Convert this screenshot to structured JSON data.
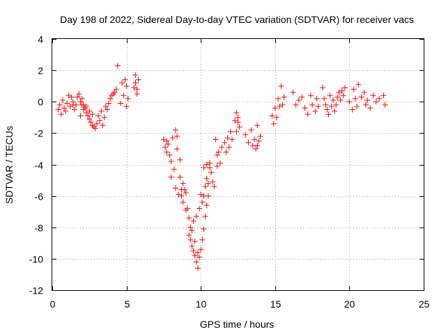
{
  "chart_data": {
    "type": "scatter",
    "title": "Day 198 of 2022, Sidereal Day-to-day VTEC variation (SDTVAR) for receiver vacs",
    "xlabel": "GPS time / hours",
    "ylabel": "SDTVAR / TECUs",
    "xlim": [
      0,
      25
    ],
    "ylim": [
      -12,
      4
    ],
    "xticks": [
      "0",
      "5",
      "10",
      "15",
      "20",
      "25"
    ],
    "yticks": [
      "4",
      "2",
      "0",
      "-2",
      "-4",
      "-6",
      "-8",
      "-10",
      "-12"
    ],
    "grid": true,
    "marker": "+",
    "color": "#ff0000",
    "series": [
      {
        "name": "SDTVAR",
        "points": [
          [
            0.4,
            -0.5
          ],
          [
            0.5,
            -0.2
          ],
          [
            0.6,
            -0.8
          ],
          [
            0.7,
            0.1
          ],
          [
            0.8,
            -0.4
          ],
          [
            0.9,
            -0.6
          ],
          [
            1.0,
            -0.1
          ],
          [
            1.1,
            0.4
          ],
          [
            1.2,
            -0.3
          ],
          [
            1.3,
            0.3
          ],
          [
            1.4,
            -0.2
          ],
          [
            1.5,
            -0.5
          ],
          [
            1.4,
            0.0
          ],
          [
            1.6,
            -0.2
          ],
          [
            1.7,
            0.3
          ],
          [
            1.8,
            0.5
          ],
          [
            1.9,
            0.0
          ],
          [
            2.0,
            -0.2
          ],
          [
            2.1,
            -0.5
          ],
          [
            2.2,
            -0.4
          ],
          [
            2.3,
            -0.7
          ],
          [
            2.4,
            -0.9
          ],
          [
            2.5,
            -1.1
          ],
          [
            2.6,
            -1.3
          ],
          [
            2.7,
            -1.5
          ],
          [
            2.8,
            -1.6
          ],
          [
            2.9,
            -1.7
          ],
          [
            1.9,
            -0.9
          ],
          [
            2.1,
            -0.2
          ],
          [
            2.3,
            -0.3
          ],
          [
            2.5,
            -0.6
          ],
          [
            2.7,
            -0.8
          ],
          [
            2.0,
            0.2
          ],
          [
            3.0,
            -1.4
          ],
          [
            3.1,
            -0.9
          ],
          [
            3.2,
            -1.2
          ],
          [
            3.3,
            -0.6
          ],
          [
            3.4,
            -1.5
          ],
          [
            3.5,
            -1.0
          ],
          [
            3.6,
            -0.3
          ],
          [
            3.7,
            -0.5
          ],
          [
            3.8,
            -0.1
          ],
          [
            3.9,
            0.2
          ],
          [
            4.0,
            0.4
          ],
          [
            4.1,
            0.5
          ],
          [
            4.2,
            0.6
          ],
          [
            4.3,
            0.8
          ],
          [
            4.4,
            2.3
          ],
          [
            4.6,
            -0.1
          ],
          [
            4.7,
            1.2
          ],
          [
            4.8,
            0.4
          ],
          [
            4.9,
            1.4
          ],
          [
            5.0,
            1.0
          ],
          [
            5.1,
            0.2
          ],
          [
            5.0,
            -0.3
          ],
          [
            5.5,
            0.9
          ],
          [
            5.6,
            1.7
          ],
          [
            5.7,
            0.8
          ],
          [
            5.6,
            1.2
          ],
          [
            5.8,
            1.4
          ],
          [
            5.7,
            0.5
          ],
          [
            7.5,
            -2.4
          ],
          [
            7.6,
            -2.9
          ],
          [
            7.7,
            -3.2
          ],
          [
            7.8,
            -2.7
          ],
          [
            7.9,
            -3.4
          ],
          [
            8.0,
            -3.8
          ],
          [
            7.7,
            -2.5
          ],
          [
            8.0,
            -4.8
          ],
          [
            8.1,
            -2.3
          ],
          [
            8.2,
            -4.3
          ],
          [
            8.3,
            -1.8
          ],
          [
            8.3,
            -5.5
          ],
          [
            8.4,
            -3.0
          ],
          [
            8.5,
            -5.9
          ],
          [
            8.6,
            -4.8
          ],
          [
            8.7,
            -6.0
          ],
          [
            8.8,
            -6.4
          ],
          [
            8.9,
            -5.6
          ],
          [
            9.0,
            -6.9
          ],
          [
            8.6,
            -3.7
          ],
          [
            8.8,
            -5.2
          ],
          [
            8.4,
            -2.2
          ],
          [
            8.7,
            -5.6
          ],
          [
            9.0,
            -5.8
          ],
          [
            9.2,
            -7.4
          ],
          [
            9.1,
            -6.8
          ],
          [
            9.2,
            -8.5
          ],
          [
            9.3,
            -8.8
          ],
          [
            9.3,
            -8.0
          ],
          [
            9.4,
            -8.2
          ],
          [
            9.4,
            -9.2
          ],
          [
            9.5,
            -7.6
          ],
          [
            9.5,
            -9.5
          ],
          [
            9.6,
            -8.9
          ],
          [
            9.6,
            -9.8
          ],
          [
            9.7,
            -10.2
          ],
          [
            9.7,
            -7.3
          ],
          [
            9.8,
            -10.6
          ],
          [
            9.8,
            -9.6
          ],
          [
            9.9,
            -9.9
          ],
          [
            9.9,
            -6.8
          ],
          [
            10.0,
            -9.4
          ],
          [
            10.0,
            -5.9
          ],
          [
            10.1,
            -8.8
          ],
          [
            10.1,
            -6.4
          ],
          [
            10.2,
            -8.1
          ],
          [
            10.2,
            -6.0
          ],
          [
            10.3,
            -7.3
          ],
          [
            10.3,
            -5.4
          ],
          [
            10.4,
            -6.6
          ],
          [
            10.4,
            -4.9
          ],
          [
            10.5,
            -6.0
          ],
          [
            10.5,
            -5.2
          ],
          [
            10.6,
            -4.2
          ],
          [
            10.7,
            -4.5
          ],
          [
            10.8,
            -5.1
          ],
          [
            10.9,
            -5.4
          ],
          [
            10.2,
            -4.2
          ],
          [
            10.4,
            -4.0
          ],
          [
            10.6,
            -3.9
          ],
          [
            11.0,
            -2.4
          ],
          [
            11.1,
            -3.4
          ],
          [
            11.1,
            -4.1
          ],
          [
            11.2,
            -3.2
          ],
          [
            11.3,
            -3.9
          ],
          [
            11.4,
            -2.9
          ],
          [
            11.6,
            -2.6
          ],
          [
            11.7,
            -3.2
          ],
          [
            11.8,
            -2.3
          ],
          [
            11.9,
            -2.9
          ],
          [
            12.0,
            -1.9
          ],
          [
            12.1,
            -2.4
          ],
          [
            12.3,
            -1.2
          ],
          [
            12.4,
            -0.7
          ],
          [
            12.5,
            -1.3
          ],
          [
            12.4,
            -1.9
          ],
          [
            12.5,
            -1.0
          ],
          [
            12.6,
            -1.6
          ],
          [
            13.0,
            -2.1
          ],
          [
            13.2,
            -2.6
          ],
          [
            13.4,
            -1.8
          ],
          [
            13.5,
            -2.8
          ],
          [
            13.6,
            -2.4
          ],
          [
            13.7,
            -3.0
          ],
          [
            13.8,
            -1.5
          ],
          [
            13.9,
            -2.5
          ],
          [
            14.0,
            -2.2
          ],
          [
            13.8,
            -2.8
          ],
          [
            14.8,
            -0.9
          ],
          [
            14.9,
            -1.4
          ],
          [
            15.0,
            -0.4
          ],
          [
            15.1,
            -1.0
          ],
          [
            15.2,
            0.2
          ],
          [
            15.3,
            -0.3
          ],
          [
            15.4,
            1.0
          ],
          [
            15.6,
            0.3
          ],
          [
            15.5,
            -0.2
          ],
          [
            16.2,
            0.6
          ],
          [
            16.4,
            -0.2
          ],
          [
            16.6,
            0.1
          ],
          [
            16.8,
            0.3
          ],
          [
            17.0,
            -0.4
          ],
          [
            17.2,
            -0.8
          ],
          [
            17.4,
            0.4
          ],
          [
            17.5,
            -0.2
          ],
          [
            17.7,
            -0.6
          ],
          [
            17.8,
            0.2
          ],
          [
            17.9,
            -0.3
          ],
          [
            18.2,
            0.9
          ],
          [
            18.3,
            0.2
          ],
          [
            18.4,
            -0.2
          ],
          [
            18.5,
            -0.5
          ],
          [
            18.6,
            -0.8
          ],
          [
            18.7,
            0.4
          ],
          [
            18.8,
            -0.3
          ],
          [
            18.9,
            0.1
          ],
          [
            19.0,
            -0.6
          ],
          [
            19.1,
            -0.2
          ],
          [
            19.2,
            0.3
          ],
          [
            19.3,
            0.6
          ],
          [
            19.4,
            0.1
          ],
          [
            19.5,
            0.7
          ],
          [
            19.6,
            0.4
          ],
          [
            19.7,
            0.9
          ],
          [
            20.0,
            0.0
          ],
          [
            20.2,
            -0.5
          ],
          [
            20.3,
            0.8
          ],
          [
            20.4,
            0.2
          ],
          [
            20.5,
            -0.3
          ],
          [
            20.6,
            1.1
          ],
          [
            20.8,
            0.3
          ],
          [
            21.0,
            0.6
          ],
          [
            21.1,
            -0.2
          ],
          [
            21.2,
            0.1
          ],
          [
            21.4,
            -0.4
          ],
          [
            21.6,
            0.4
          ],
          [
            21.8,
            0.0
          ],
          [
            22.0,
            0.2
          ],
          [
            22.3,
            0.4
          ],
          [
            22.4,
            -0.2
          ]
        ]
      }
    ]
  }
}
